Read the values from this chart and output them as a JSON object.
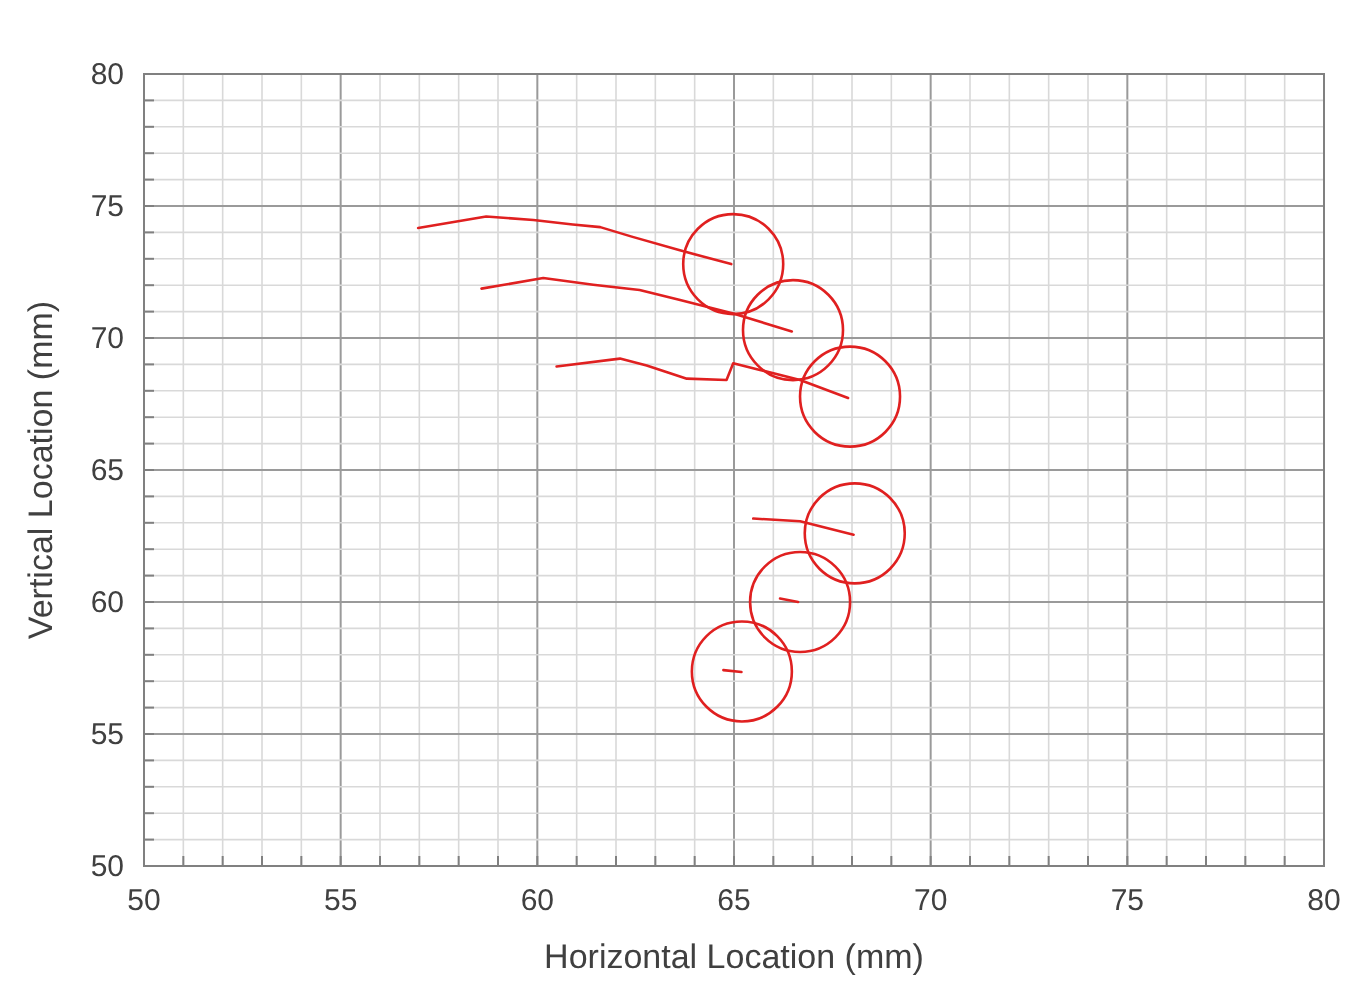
{
  "chart_data": {
    "type": "line",
    "xlabel": "Horizontal Location (mm)",
    "ylabel": "Vertical Location (mm)",
    "xlim": [
      50,
      80
    ],
    "ylim": [
      50,
      80
    ],
    "xticks": [
      50,
      {
        "value": 51,
        "label": null
      },
      {
        "value": 52,
        "label": null
      },
      {
        "value": 53,
        "label": null
      },
      {
        "value": 54,
        "label": null
      },
      55,
      {
        "value": 56,
        "label": null
      },
      {
        "value": 57,
        "label": null
      },
      {
        "value": 58,
        "label": null
      },
      {
        "value": 59,
        "label": null
      },
      60,
      {
        "value": 61,
        "label": null
      },
      {
        "value": 62,
        "label": null
      },
      {
        "value": 63,
        "label": null
      },
      {
        "value": 64,
        "label": null
      },
      65,
      {
        "value": 66,
        "label": null
      },
      {
        "value": 67,
        "label": null
      },
      {
        "value": 68,
        "label": null
      },
      {
        "value": 69,
        "label": null
      },
      70,
      {
        "value": 71,
        "label": null
      },
      {
        "value": 72,
        "label": null
      },
      {
        "value": 73,
        "label": null
      },
      {
        "value": 74,
        "label": null
      },
      75,
      {
        "value": 76,
        "label": null
      },
      {
        "value": 77,
        "label": null
      },
      {
        "value": 78,
        "label": null
      },
      {
        "value": 79,
        "label": null
      },
      80
    ],
    "yticks": [
      50,
      {
        "value": 51,
        "label": null
      },
      {
        "value": 52,
        "label": null
      },
      {
        "value": 53,
        "label": null
      },
      {
        "value": 54,
        "label": null
      },
      55,
      {
        "value": 56,
        "label": null
      },
      {
        "value": 57,
        "label": null
      },
      {
        "value": 58,
        "label": null
      },
      {
        "value": 59,
        "label": null
      },
      60,
      {
        "value": 61,
        "label": null
      },
      {
        "value": 62,
        "label": null
      },
      {
        "value": 63,
        "label": null
      },
      {
        "value": 64,
        "label": null
      },
      65,
      {
        "value": 66,
        "label": null
      },
      {
        "value": 67,
        "label": null
      },
      {
        "value": 68,
        "label": null
      },
      {
        "value": 69,
        "label": null
      },
      70,
      {
        "value": 71,
        "label": null
      },
      {
        "value": 72,
        "label": null
      },
      {
        "value": 73,
        "label": null
      },
      {
        "value": 74,
        "label": null
      },
      75,
      {
        "value": 76,
        "label": null
      },
      {
        "value": 77,
        "label": null
      },
      {
        "value": 78,
        "label": null
      },
      {
        "value": 79,
        "label": null
      },
      80
    ],
    "grid": true,
    "line_style": "solid",
    "series": [
      {
        "color": "#e02020",
        "x": [
          56.97,
          58.7,
          59.9,
          60.9,
          61.6,
          62.4,
          63.6,
          64.93
        ],
        "values": [
          74.17,
          74.6,
          74.47,
          74.3,
          74.2,
          73.84,
          73.33,
          72.8
        ]
      },
      {
        "color": "#e02020",
        "x": [
          58.58,
          60.15,
          61.42,
          62.6,
          63.63,
          64.98,
          66.47
        ],
        "values": [
          71.87,
          72.27,
          72.02,
          71.82,
          71.44,
          70.93,
          70.25
        ]
      },
      {
        "color": "#e02020",
        "x": [
          60.49,
          62.1,
          62.78,
          63.8,
          64.81,
          64.98,
          65.66,
          66.68,
          67.9
        ],
        "values": [
          68.92,
          69.22,
          68.96,
          68.46,
          68.41,
          69.04,
          68.79,
          68.41,
          67.73
        ]
      },
      {
        "color": "#e02020",
        "x": [
          65.49,
          66.68,
          68.04
        ],
        "values": [
          63.16,
          63.06,
          62.55
        ]
      },
      {
        "color": "#e02020",
        "x": [
          66.17,
          66.63
        ],
        "values": [
          60.13,
          60.0
        ]
      },
      {
        "color": "#e02020",
        "x": [
          64.73,
          65.19
        ],
        "values": [
          57.42,
          57.35
        ]
      },
      {
        "type": "scatter",
        "color": "#e02020",
        "marker": "circle",
        "x": [
          64.98,
          66.5,
          67.95,
          68.07,
          66.68,
          65.2
        ],
        "values": [
          72.8,
          70.3,
          67.78,
          62.6,
          60.0,
          57.37
        ]
      }
    ]
  }
}
